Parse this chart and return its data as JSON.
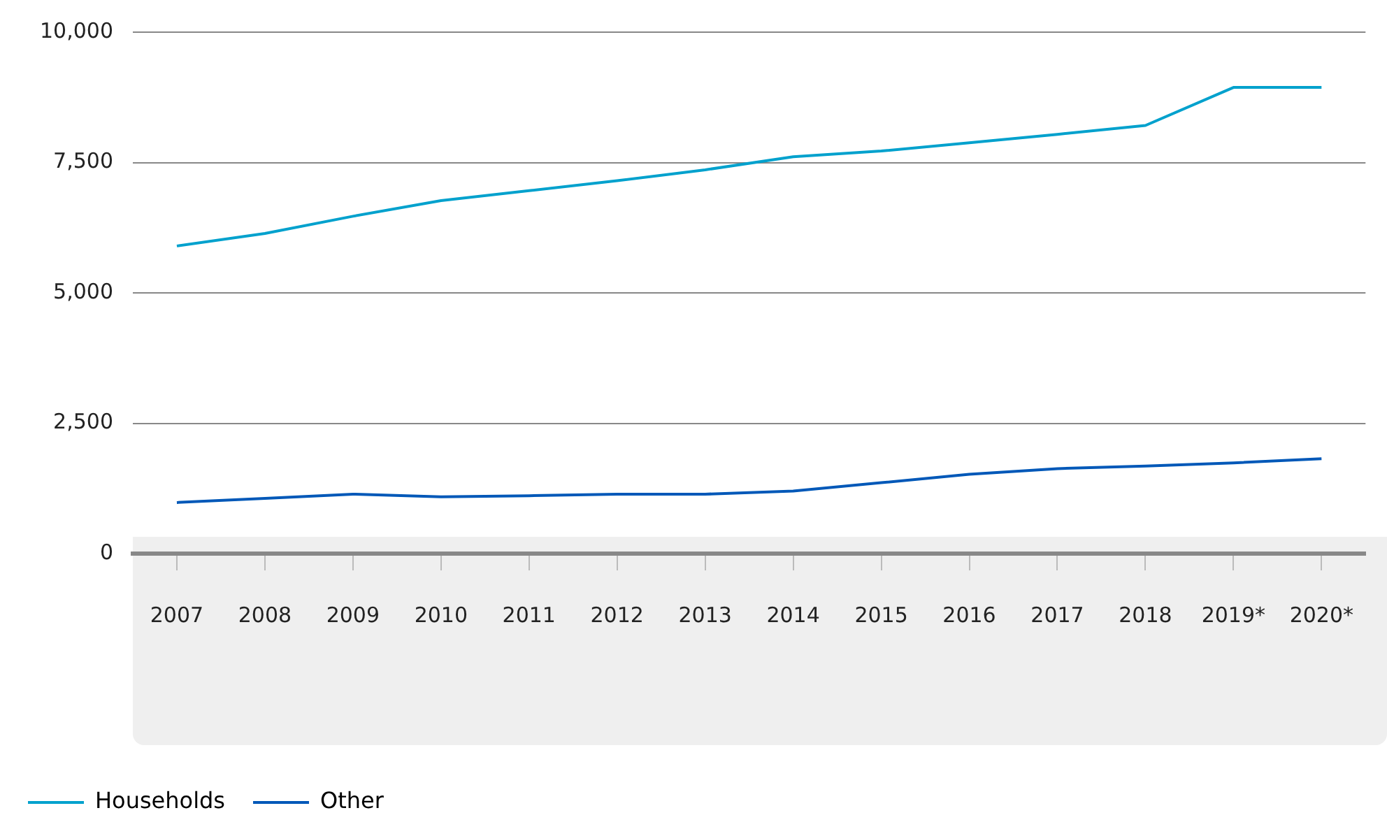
{
  "chart_data": {
    "type": "line",
    "categories": [
      "2007",
      "2008",
      "2009",
      "2010",
      "2011",
      "2012",
      "2013",
      "2014",
      "2015",
      "2016",
      "2017",
      "2018",
      "2019*",
      "2020*"
    ],
    "series": [
      {
        "name": "Households",
        "color": "#00a1cd",
        "values": [
          5900,
          6140,
          6470,
          6770,
          6960,
          7150,
          7360,
          7610,
          7720,
          7880,
          8040,
          8210,
          8940,
          8940
        ]
      },
      {
        "name": "Other",
        "color": "#0058b8",
        "values": [
          980,
          1060,
          1140,
          1090,
          1110,
          1140,
          1140,
          1200,
          1360,
          1520,
          1630,
          1680,
          1740,
          1820
        ]
      }
    ],
    "ylim": [
      0,
      10000
    ],
    "yticks": [
      0,
      {
        "value": 2500,
        "label": "2,500"
      },
      {
        "value": 5000,
        "label": "5,000"
      },
      {
        "value": 7500,
        "label": "7,500"
      },
      {
        "value": 10000,
        "label": "10,000"
      }
    ],
    "grid": "y",
    "legend": "bottom left",
    "marker": "none",
    "line_style": "solid"
  }
}
